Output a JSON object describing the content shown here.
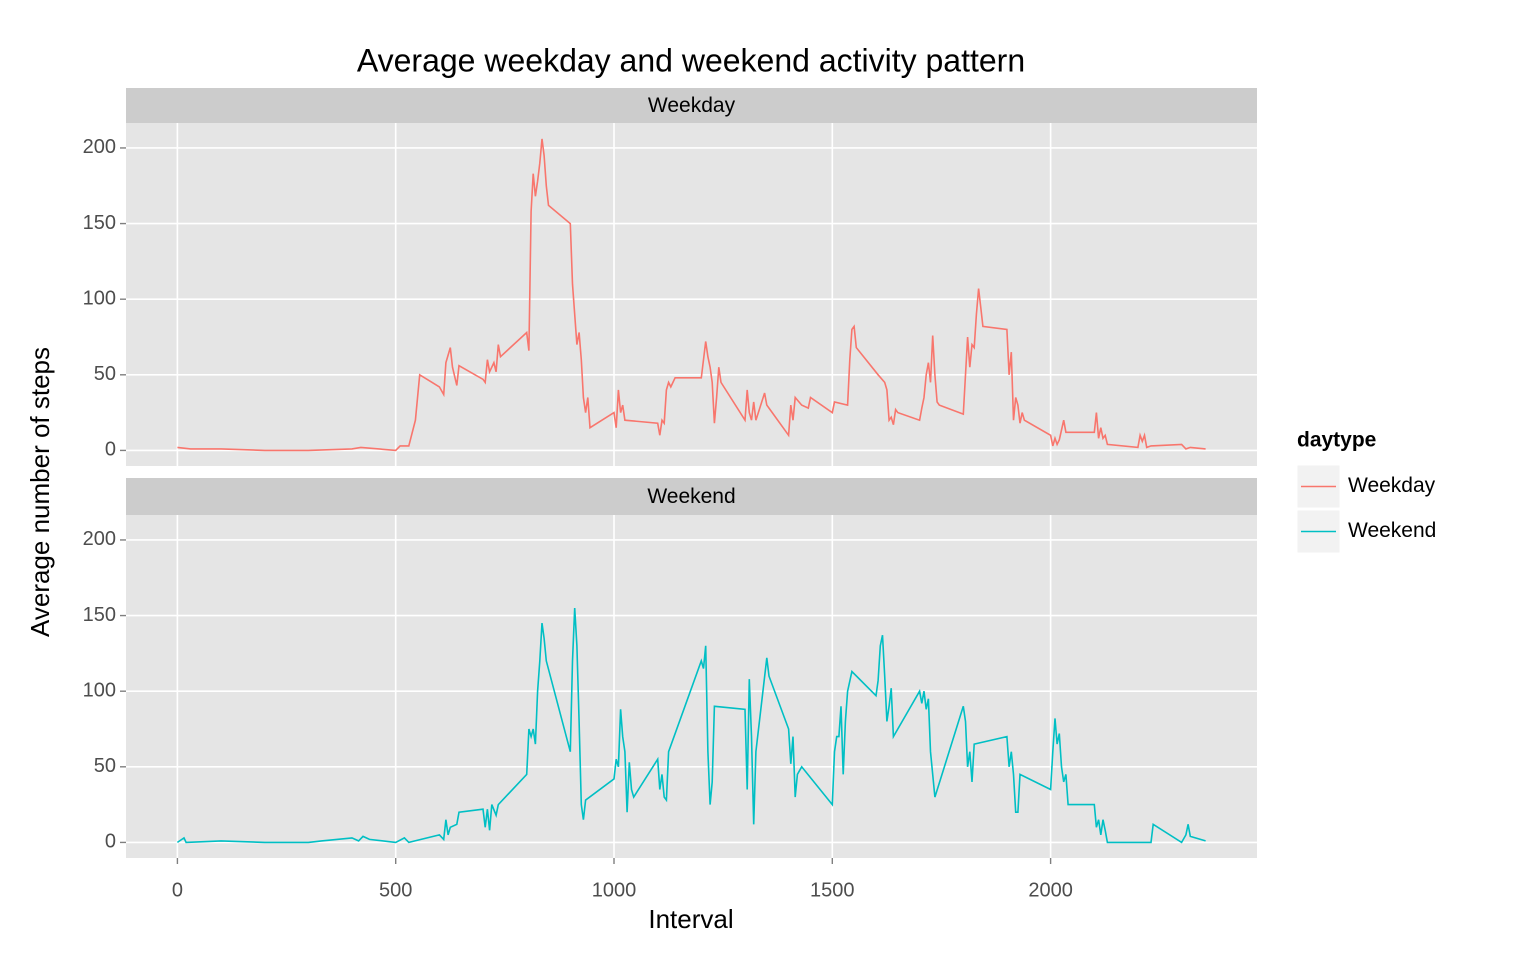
{
  "chart_data": {
    "type": "line",
    "title": "Average weekday and weekend activity pattern",
    "x_label": "Interval",
    "y_label": "Average number of steps",
    "legend_title": "daytype",
    "xlim": [
      -117.75,
      2472.75
    ],
    "xticks": [
      0,
      500,
      1000,
      1500,
      2000
    ],
    "ylim": [
      -10.3,
      216.5
    ],
    "yticks": [
      0,
      50,
      100,
      150,
      200
    ],
    "grid": true,
    "facet": true,
    "legend_position": "right",
    "series": [
      {
        "name": "Weekday",
        "color": "#F8766D",
        "x": [
          0,
          30,
          100,
          200,
          300,
          400,
          420,
          500,
          510,
          530,
          545,
          555,
          600,
          610,
          615,
          625,
          630,
          640,
          645,
          700,
          705,
          710,
          715,
          725,
          730,
          735,
          740,
          800,
          805,
          810,
          815,
          820,
          825,
          830,
          835,
          840,
          845,
          850,
          900,
          905,
          910,
          915,
          920,
          925,
          930,
          935,
          940,
          945,
          1000,
          1005,
          1010,
          1015,
          1020,
          1025,
          1100,
          1105,
          1110,
          1115,
          1120,
          1125,
          1130,
          1140,
          1200,
          1205,
          1210,
          1215,
          1220,
          1225,
          1230,
          1235,
          1240,
          1245,
          1300,
          1305,
          1310,
          1315,
          1320,
          1325,
          1345,
          1350,
          1355,
          1400,
          1405,
          1410,
          1415,
          1430,
          1445,
          1450,
          1500,
          1505,
          1535,
          1540,
          1545,
          1550,
          1555,
          1605,
          1620,
          1625,
          1630,
          1635,
          1640,
          1645,
          1650,
          1700,
          1705,
          1710,
          1715,
          1720,
          1725,
          1730,
          1735,
          1740,
          1745,
          1800,
          1805,
          1810,
          1815,
          1820,
          1825,
          1830,
          1835,
          1840,
          1845,
          1900,
          1905,
          1910,
          1915,
          1920,
          1925,
          1930,
          1935,
          1940,
          2000,
          2005,
          2010,
          2015,
          2020,
          2030,
          2035,
          2040,
          2100,
          2105,
          2110,
          2115,
          2120,
          2125,
          2130,
          2200,
          2205,
          2210,
          2215,
          2220,
          2230,
          2300,
          2310,
          2320,
          2355
        ],
        "values": [
          2,
          1,
          1,
          0,
          0,
          1,
          2,
          0,
          3,
          3,
          20,
          50,
          42,
          37,
          58,
          68,
          55,
          43,
          56,
          47,
          45,
          60,
          52,
          58,
          52,
          70,
          62,
          78,
          66,
          158,
          183,
          168,
          178,
          190,
          206,
          195,
          175,
          162,
          150,
          110,
          90,
          70,
          78,
          60,
          35,
          25,
          35,
          15,
          25,
          15,
          40,
          25,
          30,
          20,
          18,
          10,
          20,
          18,
          40,
          45,
          42,
          48,
          48,
          60,
          72,
          62,
          55,
          45,
          18,
          35,
          55,
          45,
          20,
          40,
          25,
          20,
          32,
          20,
          38,
          30,
          28,
          10,
          30,
          20,
          35,
          30,
          28,
          35,
          25,
          32,
          30,
          60,
          80,
          82,
          68,
          50,
          45,
          40,
          20,
          22,
          17,
          27,
          25,
          20,
          28,
          35,
          50,
          58,
          45,
          76,
          50,
          32,
          30,
          24,
          50,
          75,
          55,
          70,
          68,
          90,
          107,
          95,
          82,
          80,
          50,
          65,
          20,
          35,
          30,
          18,
          25,
          20,
          10,
          3,
          8,
          4,
          7,
          20,
          12,
          12,
          12,
          25,
          8,
          15,
          8,
          10,
          4,
          2,
          10,
          6,
          10,
          2,
          3,
          4,
          1,
          2,
          1
        ]
      },
      {
        "name": "Weekend",
        "color": "#00BFC4",
        "x": [
          0,
          15,
          20,
          100,
          200,
          300,
          330,
          400,
          415,
          425,
          440,
          500,
          520,
          530,
          600,
          610,
          615,
          620,
          625,
          640,
          645,
          700,
          705,
          710,
          715,
          720,
          730,
          735,
          800,
          805,
          810,
          815,
          820,
          825,
          830,
          835,
          840,
          845,
          900,
          905,
          910,
          915,
          920,
          925,
          930,
          935,
          1000,
          1005,
          1010,
          1015,
          1020,
          1025,
          1030,
          1035,
          1040,
          1045,
          1100,
          1105,
          1110,
          1115,
          1120,
          1125,
          1200,
          1205,
          1210,
          1215,
          1220,
          1225,
          1230,
          1300,
          1305,
          1310,
          1315,
          1320,
          1325,
          1350,
          1355,
          1400,
          1405,
          1410,
          1415,
          1420,
          1430,
          1500,
          1505,
          1510,
          1515,
          1520,
          1525,
          1530,
          1535,
          1545,
          1600,
          1605,
          1610,
          1615,
          1620,
          1625,
          1630,
          1635,
          1640,
          1700,
          1705,
          1710,
          1715,
          1720,
          1725,
          1730,
          1735,
          1800,
          1805,
          1810,
          1815,
          1820,
          1825,
          1900,
          1905,
          1910,
          1915,
          1920,
          1925,
          1930,
          2000,
          2005,
          2010,
          2015,
          2020,
          2025,
          2030,
          2035,
          2040,
          2100,
          2105,
          2110,
          2115,
          2120,
          2125,
          2130,
          2200,
          2230,
          2235,
          2300,
          2310,
          2315,
          2320,
          2355
        ],
        "values": [
          0,
          3,
          0,
          1,
          0,
          0,
          1,
          3,
          1,
          4,
          2,
          0,
          3,
          0,
          5,
          2,
          15,
          5,
          10,
          12,
          20,
          22,
          10,
          22,
          8,
          25,
          18,
          25,
          45,
          75,
          70,
          75,
          65,
          100,
          120,
          145,
          135,
          120,
          60,
          120,
          155,
          130,
          80,
          25,
          15,
          28,
          42,
          55,
          50,
          88,
          70,
          60,
          20,
          53,
          35,
          30,
          55,
          35,
          45,
          30,
          28,
          60,
          120,
          115,
          130,
          60,
          25,
          40,
          90,
          88,
          35,
          108,
          70,
          12,
          60,
          122,
          110,
          75,
          52,
          70,
          30,
          45,
          50,
          25,
          60,
          70,
          70,
          90,
          45,
          80,
          100,
          113,
          97,
          107,
          130,
          137,
          110,
          80,
          90,
          102,
          70,
          100,
          92,
          100,
          88,
          95,
          60,
          45,
          30,
          90,
          80,
          50,
          60,
          40,
          65,
          70,
          50,
          60,
          45,
          20,
          20,
          45,
          35,
          60,
          82,
          65,
          72,
          50,
          40,
          45,
          25,
          25,
          10,
          15,
          5,
          15,
          8,
          0,
          0,
          0,
          12,
          0,
          5,
          12,
          4,
          1
        ]
      }
    ]
  }
}
